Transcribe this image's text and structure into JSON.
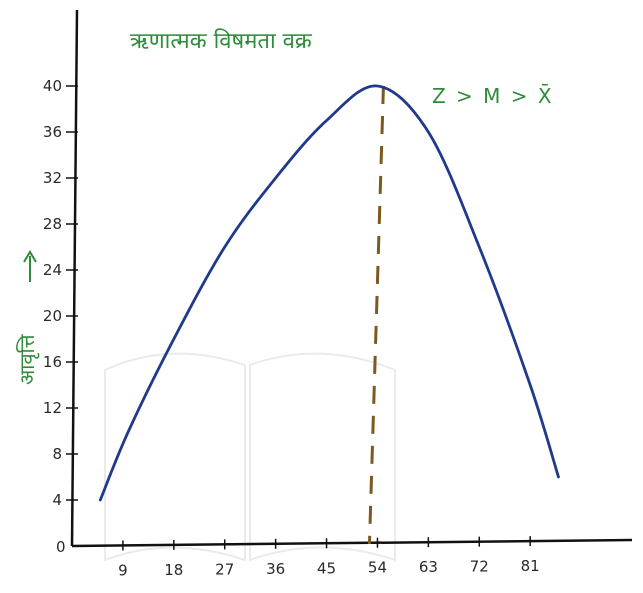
{
  "chart_data": {
    "type": "line",
    "title": "ऋणात्मक विषमता वक्र",
    "ylabel": "आवृत्ति",
    "xlabel": "",
    "annotation": "Z > M > X̄",
    "x_ticks": [
      9,
      18,
      27,
      36,
      45,
      54,
      63,
      72,
      81
    ],
    "y_ticks": [
      4,
      8,
      12,
      16,
      20,
      24,
      28,
      32,
      36,
      40
    ],
    "origin_label": "0",
    "xlim": [
      0,
      99
    ],
    "ylim": [
      0,
      44
    ],
    "series": [
      {
        "x": [
          5,
          10,
          18,
          27,
          36,
          45,
          54,
          63,
          72,
          81,
          86
        ],
        "y": [
          4,
          10,
          18,
          26,
          32,
          37,
          40,
          36,
          26,
          14,
          6
        ]
      }
    ],
    "reference_line": {
      "x": 54,
      "style": "dashed"
    },
    "colors": {
      "curve": "#1f3a8a",
      "axis": "#111111",
      "reference": "#7a5a1e",
      "label": "#2f8a3a"
    }
  }
}
